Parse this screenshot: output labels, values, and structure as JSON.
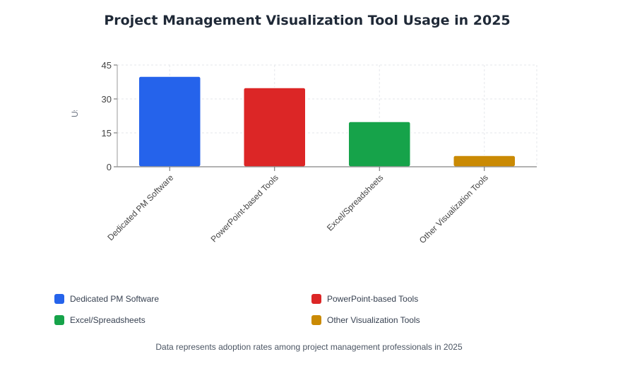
{
  "chart_data": {
    "type": "bar",
    "title": "Project Management Visualization Tool Usage in 2025",
    "ylabel": "Usage Percentage",
    "xlabel": "",
    "categories": [
      "Dedicated PM Software",
      "PowerPoint-based Tools",
      "Excel/Spreadsheets",
      "Other Visualization Tools"
    ],
    "values": [
      40,
      35,
      20,
      5
    ],
    "colors": [
      "#2563eb",
      "#dc2626",
      "#16a34a",
      "#ca8a04"
    ],
    "ylim": [
      0,
      45
    ],
    "yticks": [
      0,
      15,
      30,
      45
    ],
    "grid": true,
    "legend_position": "bottom"
  },
  "legend": [
    "Dedicated PM Software",
    "PowerPoint-based Tools",
    "Excel/Spreadsheets",
    "Other Visualization Tools"
  ],
  "footer": "Data represents adoption rates among project management professionals in 2025"
}
